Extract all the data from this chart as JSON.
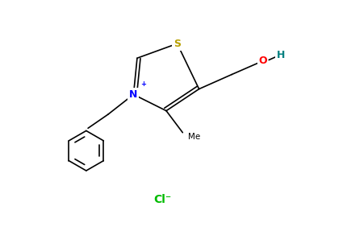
{
  "bg_color": "#ffffff",
  "bond_color": "#000000",
  "S_color": "#b8a000",
  "N_color": "#0000ff",
  "O_color": "#ff0000",
  "H_color": "#008080",
  "Cl_color": "#00bb00",
  "figsize": [
    4.31,
    2.87
  ],
  "dpi": 100,
  "Cl_label": "Cl⁻",
  "N_label": "N",
  "S_label": "S",
  "O_label": "O",
  "H_label": "H",
  "plus_label": "+"
}
